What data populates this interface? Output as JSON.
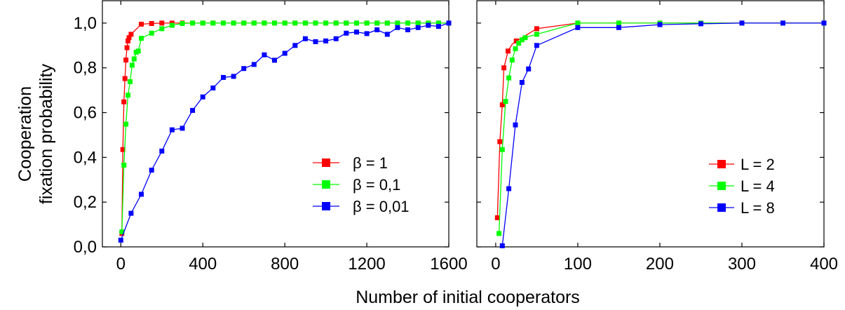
{
  "chart_data": [
    {
      "type": "line",
      "xlabel": "Number of initial cooperators",
      "ylabel_lines": [
        "Cooperation",
        "fixation probability"
      ],
      "xlim": [
        -90,
        1600
      ],
      "ylim": [
        0.0,
        1.1
      ],
      "x_ticks": [
        0,
        400,
        800,
        1200,
        1600
      ],
      "x_tick_labels": [
        "0",
        "400",
        "800",
        "1200",
        "1600"
      ],
      "y_ticks": [
        0.0,
        0.2,
        0.4,
        0.6,
        0.8,
        1.0
      ],
      "y_tick_labels": [
        "0,0",
        "0,2",
        "0,4",
        "0,6",
        "0,8",
        "1,0"
      ],
      "grid": false,
      "legend_position": "lower-right",
      "series": [
        {
          "name": "β = 1",
          "color": "#ff0000",
          "x": [
            5,
            10,
            15,
            20,
            25,
            30,
            35,
            40,
            50,
            100,
            150,
            200,
            250,
            300,
            350,
            400,
            450,
            500,
            550,
            600,
            650,
            700,
            750,
            800,
            850,
            900,
            950,
            1000,
            1050,
            1100,
            1150,
            1200,
            1250,
            1300,
            1350,
            1400,
            1450,
            1500,
            1550,
            1600
          ],
          "y": [
            0.06,
            0.435,
            0.648,
            0.752,
            0.835,
            0.89,
            0.92,
            0.935,
            0.95,
            0.995,
            0.998,
            1.0,
            1.0,
            1.0,
            1.0,
            1.0,
            1.0,
            1.0,
            1.0,
            1.0,
            1.0,
            1.0,
            1.0,
            1.0,
            1.0,
            1.0,
            1.0,
            1.0,
            1.0,
            1.0,
            1.0,
            1.0,
            1.0,
            1.0,
            1.0,
            1.0,
            1.0,
            1.0,
            1.0,
            1.0
          ]
        },
        {
          "name": "β = 0,1",
          "color": "#00ff00",
          "x": [
            5,
            15,
            25,
            35,
            45,
            55,
            65,
            75,
            85,
            100,
            150,
            200,
            250,
            300,
            350,
            400,
            450,
            500,
            550,
            600,
            650,
            700,
            750,
            800,
            850,
            900,
            950,
            1000,
            1050,
            1100,
            1150,
            1200,
            1250,
            1300,
            1350,
            1400,
            1450,
            1500,
            1550,
            1600
          ],
          "y": [
            0.067,
            0.365,
            0.548,
            0.678,
            0.738,
            0.812,
            0.84,
            0.87,
            0.875,
            0.932,
            0.955,
            0.975,
            0.99,
            0.998,
            1.0,
            1.0,
            1.0,
            1.0,
            1.0,
            1.0,
            1.0,
            1.0,
            1.0,
            1.0,
            1.0,
            1.0,
            1.0,
            1.0,
            1.0,
            1.0,
            1.0,
            1.0,
            1.0,
            1.0,
            1.0,
            1.0,
            1.0,
            1.0,
            1.0,
            1.0
          ]
        },
        {
          "name": "β = 0,01",
          "color": "#0000ff",
          "x": [
            0,
            50,
            100,
            150,
            200,
            250,
            300,
            350,
            400,
            450,
            500,
            550,
            600,
            650,
            700,
            750,
            800,
            850,
            900,
            950,
            1000,
            1050,
            1100,
            1150,
            1200,
            1250,
            1300,
            1350,
            1400,
            1450,
            1500,
            1550,
            1600
          ],
          "y": [
            0.03,
            0.15,
            0.235,
            0.343,
            0.428,
            0.523,
            0.53,
            0.61,
            0.67,
            0.71,
            0.757,
            0.762,
            0.797,
            0.815,
            0.858,
            0.834,
            0.865,
            0.9,
            0.93,
            0.917,
            0.92,
            0.93,
            0.955,
            0.96,
            0.953,
            0.97,
            0.95,
            0.98,
            0.97,
            0.98,
            0.99,
            0.985,
            1.0
          ]
        }
      ]
    },
    {
      "type": "line",
      "xlim": [
        -23,
        400
      ],
      "ylim": [
        0.0,
        1.1
      ],
      "x_ticks": [
        0,
        100,
        200,
        300,
        400
      ],
      "x_tick_labels": [
        "0",
        "100",
        "200",
        "300",
        "400"
      ],
      "y_ticks": [
        0.0,
        0.2,
        0.4,
        0.6,
        0.8,
        1.0
      ],
      "grid": false,
      "legend_position": "lower-right",
      "series": [
        {
          "name": "L = 2",
          "color": "#ff0000",
          "x": [
            2,
            5,
            8,
            10,
            15,
            20,
            25,
            30,
            50,
            100,
            150,
            200,
            250,
            300,
            350,
            400
          ],
          "y": [
            0.13,
            0.47,
            0.635,
            0.8,
            0.875,
            0.905,
            0.92,
            0.93,
            0.975,
            1.0,
            1.0,
            1.0,
            1.0,
            1.0,
            1.0,
            1.0
          ],
          "marker_x": [
            2,
            5,
            8,
            10,
            15,
            25,
            50,
            100,
            150,
            200,
            250,
            300,
            350,
            400
          ],
          "marker_y": [
            0.13,
            0.47,
            0.635,
            0.8,
            0.875,
            0.92,
            0.975,
            1.0,
            1.0,
            1.0,
            1.0,
            1.0,
            1.0,
            1.0
          ]
        },
        {
          "name": "L = 4",
          "color": "#00ff00",
          "x": [
            4,
            8,
            12,
            16,
            20,
            24,
            28,
            32,
            36,
            40,
            50,
            100,
            150,
            200,
            250,
            300,
            350,
            400
          ],
          "y": [
            0.06,
            0.435,
            0.65,
            0.755,
            0.835,
            0.885,
            0.91,
            0.925,
            0.935,
            0.94,
            0.95,
            1.0,
            1.0,
            1.0,
            1.0,
            1.0,
            1.0,
            1.0
          ],
          "marker_x": [
            4,
            8,
            12,
            16,
            20,
            24,
            28,
            32,
            36,
            50,
            100,
            150,
            200,
            250,
            300,
            350,
            400
          ],
          "marker_y": [
            0.06,
            0.435,
            0.65,
            0.755,
            0.835,
            0.885,
            0.91,
            0.925,
            0.935,
            0.95,
            1.0,
            1.0,
            1.0,
            1.0,
            1.0,
            1.0,
            1.0
          ]
        },
        {
          "name": "L = 8",
          "color": "#0000ff",
          "x": [
            8,
            16,
            24,
            32,
            40,
            50,
            100,
            150,
            200,
            250,
            300,
            350,
            400
          ],
          "y": [
            0.005,
            0.26,
            0.545,
            0.735,
            0.795,
            0.9,
            0.98,
            0.98,
            0.993,
            0.997,
            1.0,
            1.0,
            1.0
          ]
        }
      ]
    }
  ]
}
